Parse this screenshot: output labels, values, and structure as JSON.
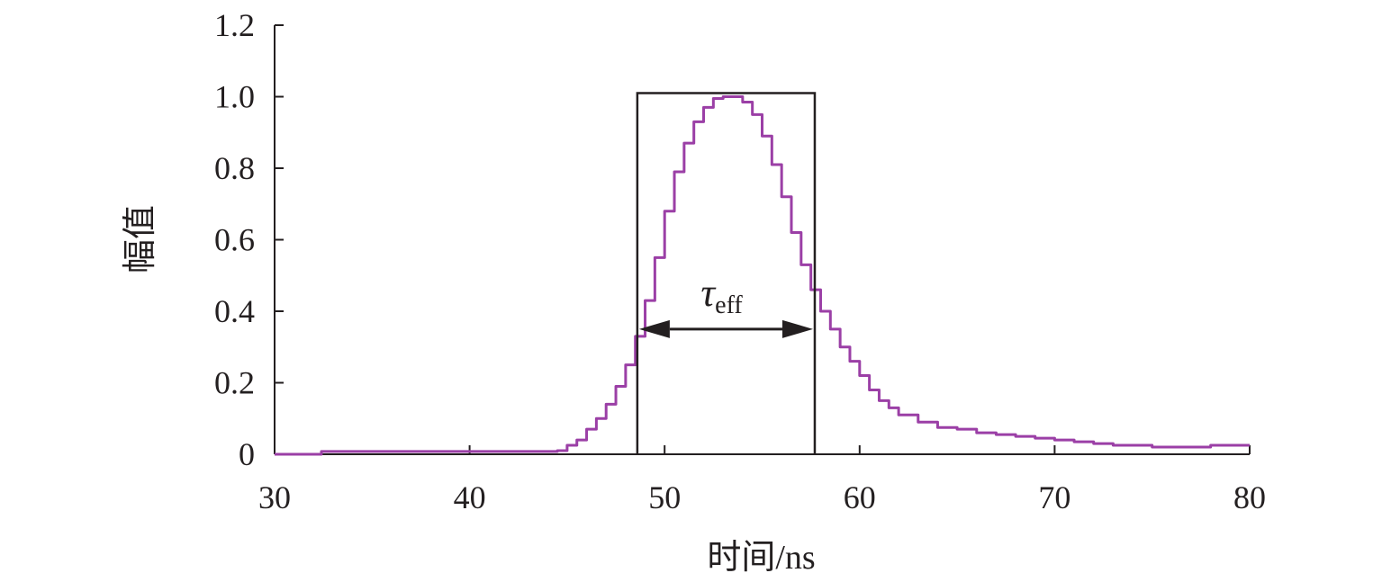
{
  "chart_data": {
    "type": "line",
    "title": "",
    "xlabel": "时间/ns",
    "ylabel": "幅值",
    "xlim": [
      30,
      80
    ],
    "ylim": [
      0,
      1.2
    ],
    "x_ticks": [
      30,
      40,
      50,
      60,
      70,
      80
    ],
    "x_tick_labels": [
      "30",
      "40",
      "50",
      "60",
      "70",
      "80"
    ],
    "y_ticks": [
      0,
      0.2,
      0.4,
      0.6,
      0.8,
      1.0,
      1.2
    ],
    "y_tick_labels": [
      "0",
      "0.2",
      "0.4",
      "0.6",
      "0.8",
      "1.0",
      "1.2"
    ],
    "grid": false,
    "series": [
      {
        "color": "#9b3fa6",
        "x": [
          30,
          32.2,
          32.4,
          36,
          40,
          44.5,
          45,
          45.5,
          46,
          46.5,
          47,
          47.5,
          48,
          48.5,
          49,
          49.5,
          50,
          50.5,
          51,
          51.5,
          52,
          52.5,
          53,
          53.5,
          54,
          54.5,
          55,
          55.5,
          56,
          56.5,
          57,
          57.5,
          58,
          58.5,
          59,
          59.5,
          60,
          60.5,
          61,
          61.5,
          62,
          63,
          64,
          65,
          66,
          67,
          68,
          69,
          70,
          71,
          72,
          73,
          74,
          75,
          76,
          77,
          78,
          79,
          80
        ],
        "y": [
          0,
          0,
          0.008,
          0.008,
          0.008,
          0.01,
          0.025,
          0.04,
          0.07,
          0.1,
          0.14,
          0.19,
          0.25,
          0.33,
          0.43,
          0.55,
          0.68,
          0.79,
          0.87,
          0.93,
          0.97,
          0.995,
          1.0,
          1.0,
          0.985,
          0.95,
          0.89,
          0.81,
          0.72,
          0.62,
          0.53,
          0.46,
          0.4,
          0.35,
          0.3,
          0.26,
          0.22,
          0.18,
          0.15,
          0.13,
          0.11,
          0.09,
          0.075,
          0.07,
          0.06,
          0.055,
          0.05,
          0.045,
          0.04,
          0.035,
          0.03,
          0.025,
          0.025,
          0.02,
          0.02,
          0.02,
          0.025,
          0.025,
          0.025
        ]
      }
    ],
    "annotation": {
      "symbol": "τ",
      "subscript": "eff",
      "box_x": [
        48.6,
        57.7
      ],
      "box_top_y": 1.01,
      "arrow_y": 0.35
    }
  }
}
